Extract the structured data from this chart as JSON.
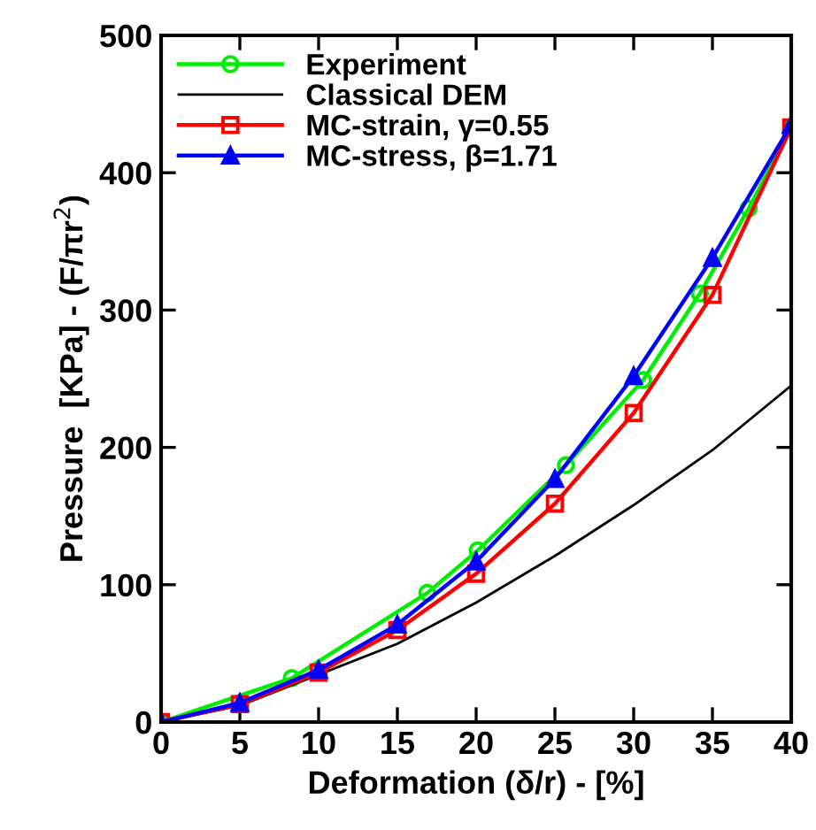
{
  "chart_data": {
    "type": "line",
    "xlabel": "Deformation (δ/r) - [%]",
    "ylabel": "Pressure  [KPa] - (F/πr$^{2}$)",
    "xlim": [
      0,
      40
    ],
    "ylim": [
      0,
      500
    ],
    "xticks": [
      0,
      5,
      10,
      15,
      20,
      25,
      30,
      35,
      40
    ],
    "yticks": [
      0,
      100,
      200,
      300,
      400,
      500
    ],
    "grid": false,
    "legend": "top left",
    "series": [
      {
        "name": "Experiment",
        "color": "#00ee00",
        "marker": "circle",
        "x": [
          0,
          8.3,
          16.9,
          20.1,
          25.7,
          30.6,
          34.2,
          37.3,
          40
        ],
        "values": [
          0,
          32,
          94,
          125,
          187,
          249,
          312,
          374,
          433
        ]
      },
      {
        "name": "Classical DEM",
        "color": "#000000",
        "marker": "none",
        "x": [
          0,
          5,
          15,
          20,
          25,
          30,
          35,
          40
        ],
        "values": [
          0,
          12,
          57,
          87,
          121,
          158,
          198,
          245
        ]
      },
      {
        "name": "MC-strain, γ=0.55",
        "color": "#ff0000",
        "marker": "square",
        "x": [
          0,
          5,
          10,
          15,
          20,
          25,
          30,
          35,
          40
        ],
        "values": [
          0,
          13,
          36,
          67,
          108,
          159,
          225,
          311,
          433
        ]
      },
      {
        "name": "MC-stress, β=1.71",
        "color": "#0000ff",
        "marker": "triangle",
        "x": [
          0,
          5,
          10,
          15,
          20,
          25,
          30,
          35,
          40
        ],
        "values": [
          0,
          14,
          38,
          71,
          117,
          177,
          252,
          338,
          435
        ]
      }
    ]
  }
}
